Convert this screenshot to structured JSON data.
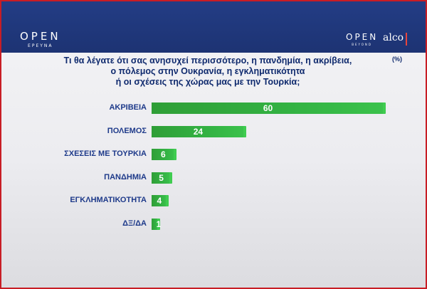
{
  "header": {
    "logo_left": "OPEN",
    "logo_left_sub": "ΕΡΕΥΝΑ",
    "logo_right": "OPEN",
    "logo_right_sub": "BEYOND",
    "partner_logo": "alco"
  },
  "colors": {
    "header_bg": "#233d85",
    "bar": "#33b243",
    "title": "#0f2a6e",
    "frame": "#c81d25"
  },
  "chart_data": {
    "type": "bar",
    "orientation": "horizontal",
    "title": "Τι θα λέγατε ότι σας ανησυχεί περισσότερο, η πανδημία, η ακρίβεια, ο πόλεμος στην Ουκρανία, η εγκληματικότητα ή οι σχέσεις της χώρας μας με την Τουρκία;",
    "title_lines": [
      "Τι θα λέγατε ότι σας ανησυχεί περισσότερο, η πανδημία, η ακρίβεια,",
      "ο πόλεμος στην Ουκρανία, η εγκληματικότητα",
      "ή οι σχέσεις της χώρας μας με την Τουρκία;"
    ],
    "unit": "(%)",
    "categories": [
      "ΑΚΡΙΒΕΙΑ",
      "ΠΟΛΕΜΟΣ",
      "ΣΧΕΣΕΙΣ ΜΕ ΤΟΥΡΚΙΑ",
      "ΠΑΝΔΗΜΙΑ",
      "ΕΓΚΛΗΜΑΤΙΚΟΤΗΤΑ",
      "ΔΞ/ΔΑ"
    ],
    "values": [
      60,
      24,
      6,
      5,
      4,
      1
    ],
    "xlim": [
      0,
      60
    ],
    "grid": false,
    "legend": "none"
  }
}
